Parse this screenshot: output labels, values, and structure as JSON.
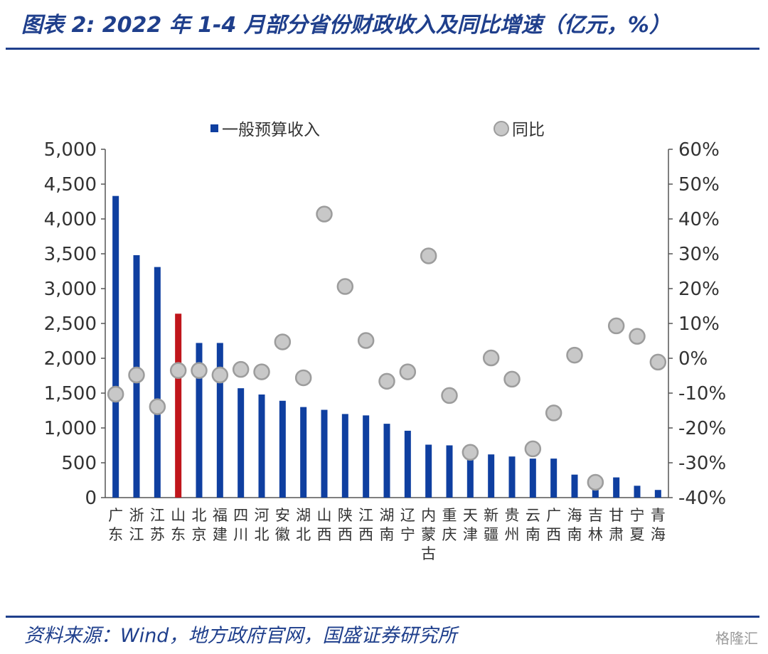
{
  "header": {
    "title": "图表 2:  2022 年 1-4 月部分省份财政收入及同比增速（亿元，%）"
  },
  "footer": {
    "source": "资料来源：Wind，地方政府官网，国盛证券研究所",
    "watermark": "格隆汇"
  },
  "colors": {
    "bar": "#0f3fa0",
    "bar_highlight": "#c0151b",
    "dot_fill": "#c8c8c8",
    "dot_stroke": "#9c9c9c",
    "title": "#1f3f8c",
    "axis": "#555555"
  },
  "chart_data": {
    "type": "bar",
    "categories": [
      "广东",
      "浙江",
      "江苏",
      "山东",
      "北京",
      "福建",
      "四川",
      "河北",
      "安徽",
      "湖北",
      "山西",
      "陕西",
      "江西",
      "湖南",
      "辽宁",
      "内蒙古",
      "重庆",
      "天津",
      "新疆",
      "贵州",
      "云南",
      "广西",
      "海南",
      "吉林",
      "甘肃",
      "宁夏",
      "青海"
    ],
    "series": [
      {
        "name": "一般预算收入",
        "chart": "bar",
        "axis": "left",
        "highlight_index": 3,
        "values": [
          4330,
          3480,
          3310,
          2640,
          2220,
          2220,
          1570,
          1480,
          1390,
          1300,
          1260,
          1200,
          1180,
          1060,
          960,
          760,
          750,
          590,
          620,
          590,
          560,
          560,
          330,
          140,
          290,
          170,
          110
        ]
      },
      {
        "name": "同比",
        "chart": "scatter",
        "axis": "right",
        "values": [
          -10.3,
          -4.8,
          -13.9,
          -3.5,
          -3.5,
          -4.8,
          -3.2,
          -3.9,
          4.7,
          -5.6,
          41.4,
          20.6,
          5.1,
          -6.6,
          -3.9,
          29.4,
          -10.7,
          -27.0,
          0.1,
          -6.0,
          -26.0,
          -15.7,
          0.9,
          -35.6,
          9.3,
          6.3,
          -1.1
        ]
      }
    ],
    "yAxisLeft": {
      "min": 0,
      "max": 5000,
      "step": 500,
      "tick_labels": [
        "0",
        "500",
        "1,000",
        "1,500",
        "2,000",
        "2,500",
        "3,000",
        "3,500",
        "4,000",
        "4,500",
        "5,000"
      ]
    },
    "yAxisRight": {
      "min": -40,
      "max": 60,
      "step": 10,
      "tick_labels": [
        "-40%",
        "-30%",
        "-20%",
        "-10%",
        "0%",
        "10%",
        "20%",
        "30%",
        "40%",
        "50%",
        "60%"
      ]
    },
    "legend_position": "top-center",
    "grid": false
  }
}
